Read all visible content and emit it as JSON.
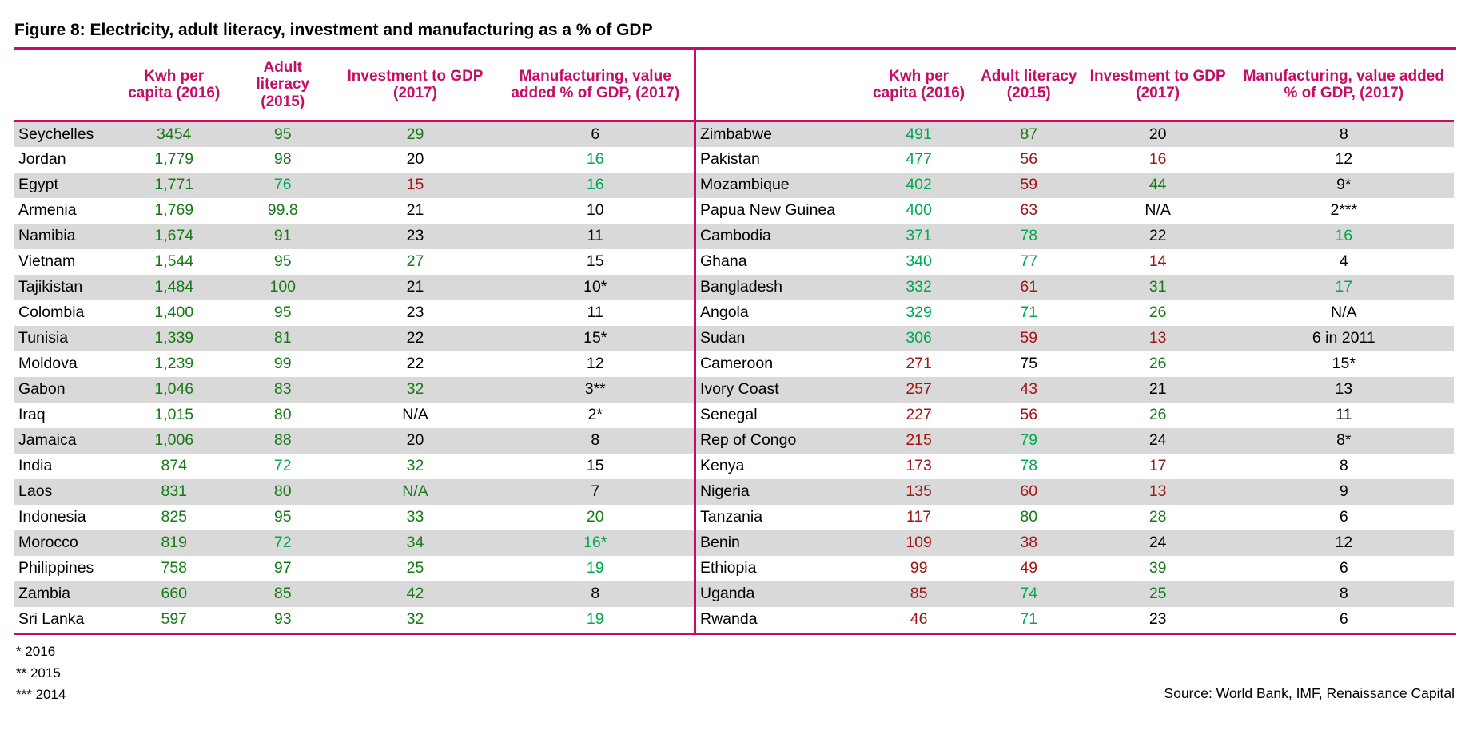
{
  "title": "Figure 8: Electricity, adult literacy, investment and manufacturing as a % of GDP",
  "columns": [
    "Kwh per capita (2016)",
    "Adult literacy (2015)",
    "Investment to GDP (2017)",
    "Manufacturing, value added % of GDP, (2017)"
  ],
  "colors": {
    "header_accent": "#c60d66",
    "dark_green": "#177a17",
    "bright_green": "#00a84f",
    "dark_red": "#a01616",
    "stripe": "#d9d9d9",
    "text": "#000000"
  },
  "tables": [
    {
      "rows": [
        [
          "Seychelles",
          [
            "3454",
            "g"
          ],
          [
            "95",
            "g"
          ],
          [
            "29",
            "g"
          ],
          [
            "6",
            "k"
          ]
        ],
        [
          "Jordan",
          [
            "1,779",
            "g"
          ],
          [
            "98",
            "g"
          ],
          [
            "20",
            "k"
          ],
          [
            "16",
            "b"
          ]
        ],
        [
          "Egypt",
          [
            "1,771",
            "g"
          ],
          [
            "76",
            "b"
          ],
          [
            "15",
            "r"
          ],
          [
            "16",
            "b"
          ]
        ],
        [
          "Armenia",
          [
            "1,769",
            "g"
          ],
          [
            "99.8",
            "g"
          ],
          [
            "21",
            "k"
          ],
          [
            "10",
            "k"
          ]
        ],
        [
          "Namibia",
          [
            "1,674",
            "g"
          ],
          [
            "91",
            "g"
          ],
          [
            "23",
            "k"
          ],
          [
            "11",
            "k"
          ]
        ],
        [
          "Vietnam",
          [
            "1,544",
            "g"
          ],
          [
            "95",
            "g"
          ],
          [
            "27",
            "g"
          ],
          [
            "15",
            "k"
          ]
        ],
        [
          "Tajikistan",
          [
            "1,484",
            "g"
          ],
          [
            "100",
            "g"
          ],
          [
            "21",
            "k"
          ],
          [
            "10*",
            "k"
          ]
        ],
        [
          "Colombia",
          [
            "1,400",
            "g"
          ],
          [
            "95",
            "g"
          ],
          [
            "23",
            "k"
          ],
          [
            "11",
            "k"
          ]
        ],
        [
          "Tunisia",
          [
            "1,339",
            "g"
          ],
          [
            "81",
            "g"
          ],
          [
            "22",
            "k"
          ],
          [
            "15*",
            "k"
          ]
        ],
        [
          "Moldova",
          [
            "1,239",
            "g"
          ],
          [
            "99",
            "g"
          ],
          [
            "22",
            "k"
          ],
          [
            "12",
            "k"
          ]
        ],
        [
          "Gabon",
          [
            "1,046",
            "g"
          ],
          [
            "83",
            "g"
          ],
          [
            "32",
            "g"
          ],
          [
            "3**",
            "k"
          ]
        ],
        [
          "Iraq",
          [
            "1,015",
            "g"
          ],
          [
            "80",
            "g"
          ],
          [
            "N/A",
            "k"
          ],
          [
            "2*",
            "k"
          ]
        ],
        [
          "Jamaica",
          [
            "1,006",
            "g"
          ],
          [
            "88",
            "g"
          ],
          [
            "20",
            "k"
          ],
          [
            "8",
            "k"
          ]
        ],
        [
          "India",
          [
            "874",
            "g"
          ],
          [
            "72",
            "b"
          ],
          [
            "32",
            "g"
          ],
          [
            "15",
            "k"
          ]
        ],
        [
          "Laos",
          [
            "831",
            "g"
          ],
          [
            "80",
            "g"
          ],
          [
            "N/A",
            "g"
          ],
          [
            "7",
            "k"
          ]
        ],
        [
          "Indonesia",
          [
            "825",
            "g"
          ],
          [
            "95",
            "g"
          ],
          [
            "33",
            "g"
          ],
          [
            "20",
            "g"
          ]
        ],
        [
          "Morocco",
          [
            "819",
            "g"
          ],
          [
            "72",
            "b"
          ],
          [
            "34",
            "g"
          ],
          [
            "16*",
            "b"
          ]
        ],
        [
          "Philippines",
          [
            "758",
            "g"
          ],
          [
            "97",
            "g"
          ],
          [
            "25",
            "g"
          ],
          [
            "19",
            "b"
          ]
        ],
        [
          "Zambia",
          [
            "660",
            "g"
          ],
          [
            "85",
            "g"
          ],
          [
            "42",
            "g"
          ],
          [
            "8",
            "k"
          ]
        ],
        [
          "Sri Lanka",
          [
            "597",
            "g"
          ],
          [
            "93",
            "g"
          ],
          [
            "32",
            "g"
          ],
          [
            "19",
            "b"
          ]
        ]
      ]
    },
    {
      "rows": [
        [
          "Zimbabwe",
          [
            "491",
            "b"
          ],
          [
            "87",
            "g"
          ],
          [
            "20",
            "k"
          ],
          [
            "8",
            "k"
          ]
        ],
        [
          "Pakistan",
          [
            "477",
            "b"
          ],
          [
            "56",
            "r"
          ],
          [
            "16",
            "r"
          ],
          [
            "12",
            "k"
          ]
        ],
        [
          "Mozambique",
          [
            "402",
            "b"
          ],
          [
            "59",
            "r"
          ],
          [
            "44",
            "g"
          ],
          [
            "9*",
            "k"
          ]
        ],
        [
          "Papua New Guinea",
          [
            "400",
            "b"
          ],
          [
            "63",
            "r"
          ],
          [
            "N/A",
            "k"
          ],
          [
            "2***",
            "k"
          ]
        ],
        [
          "Cambodia",
          [
            "371",
            "b"
          ],
          [
            "78",
            "b"
          ],
          [
            "22",
            "k"
          ],
          [
            "16",
            "b"
          ]
        ],
        [
          "Ghana",
          [
            "340",
            "b"
          ],
          [
            "77",
            "b"
          ],
          [
            "14",
            "r"
          ],
          [
            "4",
            "k"
          ]
        ],
        [
          "Bangladesh",
          [
            "332",
            "b"
          ],
          [
            "61",
            "r"
          ],
          [
            "31",
            "g"
          ],
          [
            "17",
            "b"
          ]
        ],
        [
          "Angola",
          [
            "329",
            "b"
          ],
          [
            "71",
            "b"
          ],
          [
            "26",
            "g"
          ],
          [
            "N/A",
            "k"
          ]
        ],
        [
          "Sudan",
          [
            "306",
            "b"
          ],
          [
            "59",
            "r"
          ],
          [
            "13",
            "r"
          ],
          [
            "6 in 2011",
            "k"
          ]
        ],
        [
          "Cameroon",
          [
            "271",
            "r"
          ],
          [
            "75",
            "k"
          ],
          [
            "26",
            "g"
          ],
          [
            "15*",
            "k"
          ]
        ],
        [
          "Ivory Coast",
          [
            "257",
            "r"
          ],
          [
            "43",
            "r"
          ],
          [
            "21",
            "k"
          ],
          [
            "13",
            "k"
          ]
        ],
        [
          "Senegal",
          [
            "227",
            "r"
          ],
          [
            "56",
            "r"
          ],
          [
            "26",
            "g"
          ],
          [
            "11",
            "k"
          ]
        ],
        [
          "Rep of Congo",
          [
            "215",
            "r"
          ],
          [
            "79",
            "b"
          ],
          [
            "24",
            "k"
          ],
          [
            "8*",
            "k"
          ]
        ],
        [
          "Kenya",
          [
            "173",
            "r"
          ],
          [
            "78",
            "b"
          ],
          [
            "17",
            "r"
          ],
          [
            "8",
            "k"
          ]
        ],
        [
          "Nigeria",
          [
            "135",
            "r"
          ],
          [
            "60",
            "r"
          ],
          [
            "13",
            "r"
          ],
          [
            "9",
            "k"
          ]
        ],
        [
          "Tanzania",
          [
            "117",
            "r"
          ],
          [
            "80",
            "g"
          ],
          [
            "28",
            "g"
          ],
          [
            "6",
            "k"
          ]
        ],
        [
          "Benin",
          [
            "109",
            "r"
          ],
          [
            "38",
            "r"
          ],
          [
            "24",
            "k"
          ],
          [
            "12",
            "k"
          ]
        ],
        [
          "Ethiopia",
          [
            "99",
            "r"
          ],
          [
            "49",
            "r"
          ],
          [
            "39",
            "g"
          ],
          [
            "6",
            "k"
          ]
        ],
        [
          "Uganda",
          [
            "85",
            "r"
          ],
          [
            "74",
            "b"
          ],
          [
            "25",
            "g"
          ],
          [
            "8",
            "k"
          ]
        ],
        [
          "Rwanda",
          [
            "46",
            "r"
          ],
          [
            "71",
            "b"
          ],
          [
            "23",
            "k"
          ],
          [
            "6",
            "k"
          ]
        ]
      ]
    }
  ],
  "footnotes": [
    "* 2016",
    "** 2015",
    "*** 2014"
  ],
  "source": "Source: World Bank, IMF, Renaissance Capital"
}
